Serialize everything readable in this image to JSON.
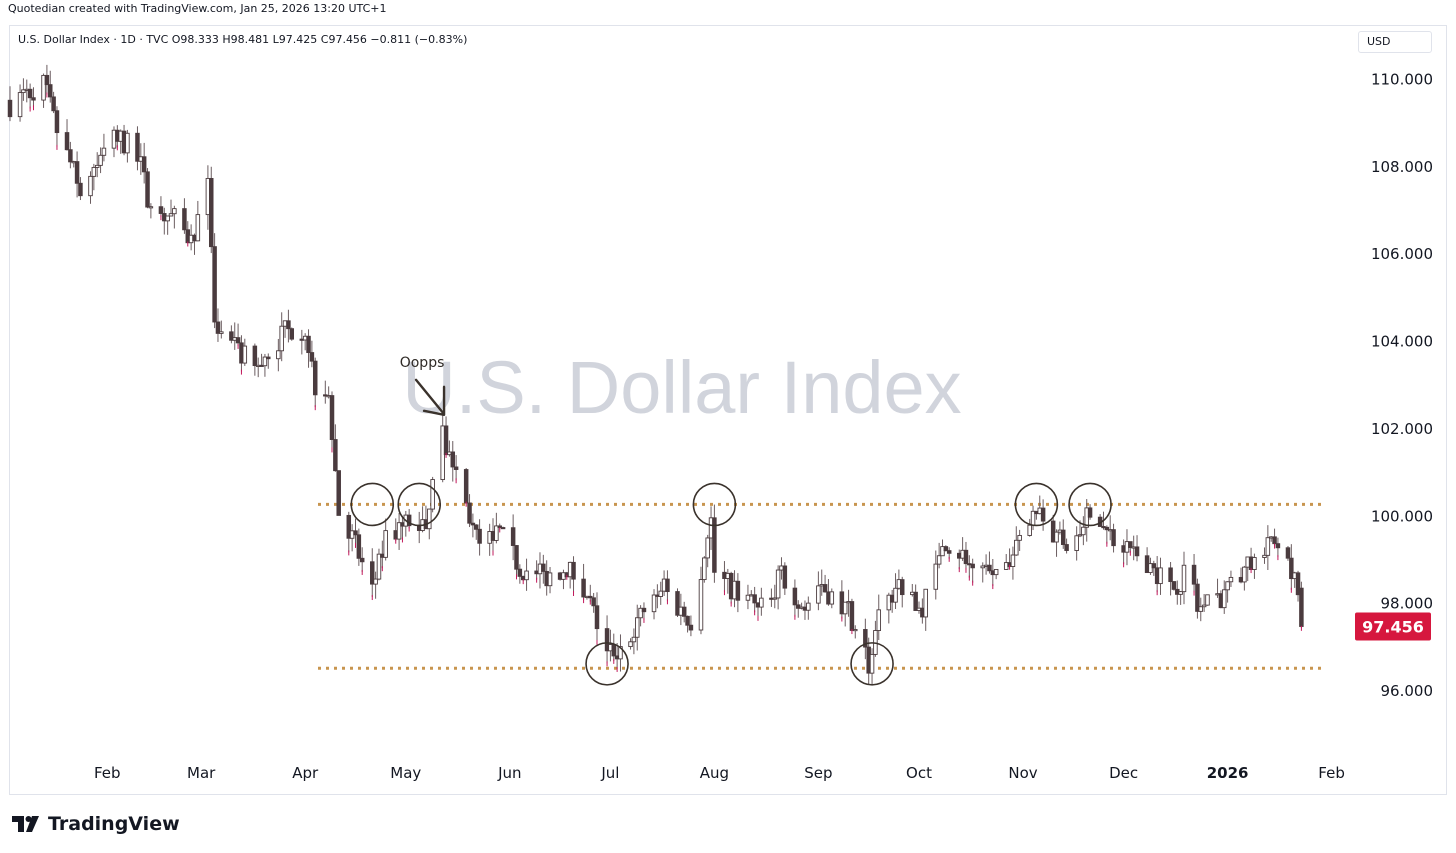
{
  "header": {
    "attribution": "Quotedian created with TradingView.com, Jan 25, 2026 13:20 UTC+1"
  },
  "legend": {
    "text": "U.S. Dollar Index · 1D · TVC  O98.333  H98.481  L97.425  C97.456  −0.811 (−0.83%)"
  },
  "currency_button": {
    "label": "USD"
  },
  "watermark": "U.S. Dollar Index",
  "brand": {
    "name": "TradingView"
  },
  "colors": {
    "candle": "#4a3b3e",
    "wick": "#6b5d60",
    "up_accent": "#ffffff",
    "down_accent": "#c2185b",
    "level_line": "#c8954f",
    "circle": "#3a322c",
    "price_tag_bg": "#d6173e",
    "watermark": "#d1d4dc",
    "axis_text": "#131722"
  },
  "chart_data": {
    "type": "candlestick",
    "title": "U.S. Dollar Index",
    "ylim": [
      94.4,
      111.2
    ],
    "yticks": [
      96,
      98,
      100,
      102,
      104,
      106,
      108,
      110
    ],
    "ytick_labels": [
      "96.000",
      "98.000",
      "100.000",
      "102.000",
      "104.000",
      "106.000",
      "108.000",
      "110.000"
    ],
    "xlim": [
      "2025-01-03",
      "2026-02-05"
    ],
    "xticks": [
      {
        "date": "2025-02-01",
        "label": "Feb"
      },
      {
        "date": "2025-03-01",
        "label": "Mar"
      },
      {
        "date": "2025-04-01",
        "label": "Apr"
      },
      {
        "date": "2025-05-01",
        "label": "May"
      },
      {
        "date": "2025-06-01",
        "label": "Jun"
      },
      {
        "date": "2025-07-01",
        "label": "Jul"
      },
      {
        "date": "2025-08-01",
        "label": "Aug"
      },
      {
        "date": "2025-09-01",
        "label": "Sep"
      },
      {
        "date": "2025-10-01",
        "label": "Oct"
      },
      {
        "date": "2025-11-01",
        "label": "Nov"
      },
      {
        "date": "2025-12-01",
        "label": "Dec"
      },
      {
        "date": "2026-01-01",
        "label": "2026"
      },
      {
        "date": "2026-02-01",
        "label": "Feb"
      }
    ],
    "last_price": 97.456,
    "last_price_label": "97.456",
    "levels": [
      100.25,
      96.5
    ],
    "markers": [
      {
        "date": "2025-04-21",
        "price": 100.25
      },
      {
        "date": "2025-05-05",
        "price": 100.25
      },
      {
        "date": "2025-08-01",
        "price": 100.25
      },
      {
        "date": "2025-11-05",
        "price": 100.25
      },
      {
        "date": "2025-11-21",
        "price": 100.25
      },
      {
        "date": "2025-06-30",
        "price": 96.6
      },
      {
        "date": "2025-09-17",
        "price": 96.6
      }
    ],
    "annotation": {
      "text": "Oopps",
      "date": "2025-05-13",
      "price": 102.3
    },
    "close_path": [
      [
        "2025-01-03",
        109.4
      ],
      [
        "2025-01-13",
        109.9
      ],
      [
        "2025-01-17",
        108.8
      ],
      [
        "2025-01-24",
        107.5
      ],
      [
        "2025-01-28",
        107.9
      ],
      [
        "2025-02-03",
        108.7
      ],
      [
        "2025-02-10",
        108.3
      ],
      [
        "2025-02-14",
        107.0
      ],
      [
        "2025-02-21",
        106.8
      ],
      [
        "2025-02-26",
        106.3
      ],
      [
        "2025-03-03",
        107.5
      ],
      [
        "2025-03-05",
        104.3
      ],
      [
        "2025-03-11",
        103.8
      ],
      [
        "2025-03-18",
        103.4
      ],
      [
        "2025-03-26",
        104.2
      ],
      [
        "2025-04-01",
        104.3
      ],
      [
        "2025-04-04",
        103.0
      ],
      [
        "2025-04-08",
        102.9
      ],
      [
        "2025-04-11",
        100.1
      ],
      [
        "2025-04-14",
        99.7
      ],
      [
        "2025-04-21",
        98.3
      ],
      [
        "2025-04-25",
        99.4
      ],
      [
        "2025-05-01",
        99.8
      ],
      [
        "2025-05-07",
        99.8
      ],
      [
        "2025-05-12",
        101.8
      ],
      [
        "2025-05-16",
        101.0
      ],
      [
        "2025-05-23",
        99.2
      ],
      [
        "2025-05-29",
        99.6
      ],
      [
        "2025-06-04",
        98.8
      ],
      [
        "2025-06-11",
        98.6
      ],
      [
        "2025-06-18",
        98.8
      ],
      [
        "2025-06-23",
        98.4
      ],
      [
        "2025-06-30",
        96.9
      ],
      [
        "2025-07-03",
        96.9
      ],
      [
        "2025-07-10",
        97.7
      ],
      [
        "2025-07-16",
        98.4
      ],
      [
        "2025-07-21",
        97.9
      ],
      [
        "2025-07-25",
        97.6
      ],
      [
        "2025-07-31",
        99.9
      ],
      [
        "2025-08-01",
        98.7
      ],
      [
        "2025-08-08",
        98.2
      ],
      [
        "2025-08-14",
        97.8
      ],
      [
        "2025-08-21",
        98.6
      ],
      [
        "2025-08-28",
        97.9
      ],
      [
        "2025-09-03",
        98.3
      ],
      [
        "2025-09-10",
        97.8
      ],
      [
        "2025-09-16",
        96.6
      ],
      [
        "2025-09-19",
        97.6
      ],
      [
        "2025-09-25",
        98.5
      ],
      [
        "2025-10-01",
        97.7
      ],
      [
        "2025-10-09",
        99.4
      ],
      [
        "2025-10-14",
        99.1
      ],
      [
        "2025-10-20",
        98.6
      ],
      [
        "2025-10-28",
        98.8
      ],
      [
        "2025-11-04",
        100.2
      ],
      [
        "2025-11-10",
        99.6
      ],
      [
        "2025-11-14",
        99.3
      ],
      [
        "2025-11-21",
        100.2
      ],
      [
        "2025-11-26",
        99.6
      ],
      [
        "2025-12-02",
        99.3
      ],
      [
        "2025-12-09",
        98.9
      ],
      [
        "2025-12-15",
        98.3
      ],
      [
        "2025-12-19",
        98.6
      ],
      [
        "2025-12-24",
        97.9
      ],
      [
        "2025-12-31",
        98.2
      ],
      [
        "2026-01-08",
        98.9
      ],
      [
        "2026-01-14",
        99.3
      ],
      [
        "2026-01-16",
        99.4
      ],
      [
        "2026-01-19",
        99.1
      ],
      [
        "2026-01-21",
        98.5
      ],
      [
        "2026-01-23",
        97.456
      ]
    ],
    "last_candle": {
      "date": "2026-01-23",
      "open": 98.333,
      "high": 98.481,
      "low": 97.425,
      "close": 97.456
    }
  }
}
